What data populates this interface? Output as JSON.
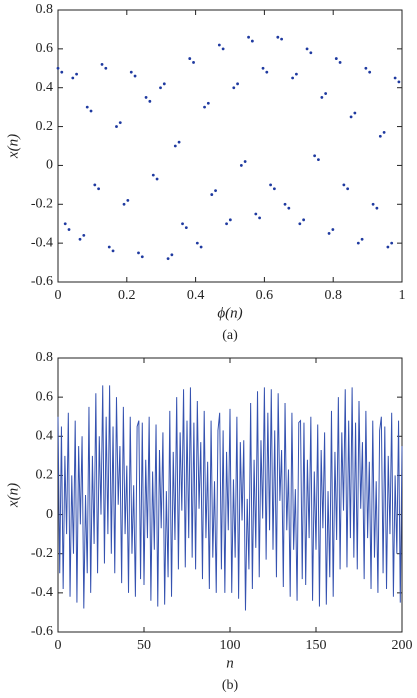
{
  "chart_data": [
    {
      "type": "scatter",
      "xlabel": "ϕ(n)",
      "ylabel": "x(n)",
      "caption": "(a)",
      "color": "#1f3aa0",
      "xlim": [
        0,
        1
      ],
      "xticks": [
        0,
        0.2,
        0.4,
        0.6,
        0.8,
        1
      ],
      "ylim": [
        -0.6,
        0.8
      ],
      "yticks": [
        -0.6,
        -0.4,
        -0.2,
        0,
        0.2,
        0.4,
        0.6,
        0.8
      ],
      "x": [
        0,
        0.021,
        0.043,
        0.064,
        0.085,
        0.107,
        0.128,
        0.149,
        0.17,
        0.192,
        0.213,
        0.234,
        0.256,
        0.277,
        0.298,
        0.32,
        0.341,
        0.362,
        0.383,
        0.405,
        0.426,
        0.447,
        0.469,
        0.49,
        0.511,
        0.533,
        0.554,
        0.575,
        0.596,
        0.618,
        0.639,
        0.66,
        0.682,
        0.703,
        0.724,
        0.746,
        0.767,
        0.788,
        0.809,
        0.831,
        0.852,
        0.873,
        0.895,
        0.916,
        0.937,
        0.959,
        0.98,
        0.011,
        0.032,
        0.054,
        0.075,
        0.096,
        0.118,
        0.139,
        0.16,
        0.181,
        0.203,
        0.224,
        0.245,
        0.267,
        0.288,
        0.309,
        0.331,
        0.352,
        0.373,
        0.394,
        0.416,
        0.437,
        0.458,
        0.48,
        0.501,
        0.522,
        0.544,
        0.565,
        0.586,
        0.607,
        0.629,
        0.65,
        0.671,
        0.693,
        0.714,
        0.735,
        0.757,
        0.778,
        0.799,
        0.82,
        0.842,
        0.863,
        0.884,
        0.906,
        0.927,
        0.948,
        0.97,
        0.991
      ],
      "values": [
        0.5,
        -0.3,
        0.45,
        -0.38,
        0.3,
        -0.1,
        0.52,
        -0.42,
        0.2,
        -0.2,
        0.48,
        -0.45,
        0.35,
        -0.05,
        0.4,
        -0.48,
        0.1,
        -0.3,
        0.55,
        -0.4,
        0.3,
        -0.15,
        0.62,
        -0.3,
        0.4,
        0.0,
        0.66,
        -0.25,
        0.5,
        -0.1,
        0.66,
        -0.2,
        0.45,
        -0.3,
        0.6,
        0.05,
        0.35,
        -0.35,
        0.55,
        -0.1,
        0.25,
        -0.4,
        0.5,
        -0.2,
        0.15,
        -0.42,
        0.45,
        0.48,
        -0.33,
        0.47,
        -0.36,
        0.28,
        -0.12,
        0.5,
        -0.44,
        0.22,
        -0.18,
        0.46,
        -0.47,
        0.33,
        -0.07,
        0.42,
        -0.46,
        0.12,
        -0.32,
        0.53,
        -0.42,
        0.32,
        -0.13,
        0.6,
        -0.28,
        0.42,
        0.02,
        0.64,
        -0.27,
        0.48,
        -0.12,
        0.65,
        -0.22,
        0.47,
        -0.28,
        0.58,
        0.03,
        0.37,
        -0.33,
        0.53,
        -0.12,
        0.27,
        -0.38,
        0.48,
        -0.22,
        0.17,
        -0.4,
        0.43
      ]
    },
    {
      "type": "line",
      "xlabel": "n",
      "ylabel": "x(n)",
      "caption": "(b)",
      "color": "#3552b0",
      "xlim": [
        0,
        200
      ],
      "xticks": [
        0,
        50,
        100,
        150,
        200
      ],
      "ylim": [
        -0.6,
        0.8
      ],
      "yticks": [
        -0.6,
        -0.4,
        -0.2,
        0,
        0.2,
        0.4,
        0.6,
        0.8
      ],
      "x": [
        0,
        1,
        2,
        3,
        4,
        5,
        6,
        7,
        8,
        9,
        10,
        11,
        12,
        13,
        14,
        15,
        16,
        17,
        18,
        19,
        20,
        21,
        22,
        23,
        24,
        25,
        26,
        27,
        28,
        29,
        30,
        31,
        32,
        33,
        34,
        35,
        36,
        37,
        38,
        39,
        40,
        41,
        42,
        43,
        44,
        45,
        46,
        47,
        48,
        49,
        50,
        51,
        52,
        53,
        54,
        55,
        56,
        57,
        58,
        59,
        60,
        61,
        62,
        63,
        64,
        65,
        66,
        67,
        68,
        69,
        70,
        71,
        72,
        73,
        74,
        75,
        76,
        77,
        78,
        79,
        80,
        81,
        82,
        83,
        84,
        85,
        86,
        87,
        88,
        89,
        90,
        91,
        92,
        93,
        94,
        95,
        96,
        97,
        98,
        99,
        100,
        101,
        102,
        103,
        104,
        105,
        106,
        107,
        108,
        109,
        110,
        111,
        112,
        113,
        114,
        115,
        116,
        117,
        118,
        119,
        120,
        121,
        122,
        123,
        124,
        125,
        126,
        127,
        128,
        129,
        130,
        131,
        132,
        133,
        134,
        135,
        136,
        137,
        138,
        139,
        140,
        141,
        142,
        143,
        144,
        145,
        146,
        147,
        148,
        149,
        150,
        151,
        152,
        153,
        154,
        155,
        156,
        157,
        158,
        159,
        160,
        161,
        162,
        163,
        164,
        165,
        166,
        167,
        168,
        169,
        170,
        171,
        172,
        173,
        174,
        175,
        176,
        177,
        178,
        179,
        180,
        181,
        182,
        183,
        184,
        185,
        186,
        187,
        188,
        189,
        190,
        191,
        192,
        193,
        194,
        195,
        196,
        197,
        198,
        199,
        200
      ],
      "values": [
        0.5,
        -0.3,
        0.45,
        -0.38,
        0.3,
        -0.1,
        0.52,
        -0.42,
        0.2,
        -0.2,
        0.48,
        -0.45,
        0.35,
        -0.05,
        0.4,
        -0.48,
        0.1,
        -0.3,
        0.55,
        -0.4,
        0.3,
        -0.15,
        0.62,
        -0.3,
        0.4,
        0.0,
        0.66,
        -0.25,
        0.5,
        -0.1,
        0.66,
        -0.2,
        0.45,
        -0.3,
        0.6,
        0.05,
        0.35,
        -0.35,
        0.55,
        -0.1,
        0.25,
        -0.4,
        0.5,
        -0.2,
        0.15,
        -0.42,
        0.45,
        0.48,
        -0.33,
        0.47,
        -0.36,
        0.28,
        -0.12,
        0.5,
        -0.44,
        0.22,
        -0.18,
        0.46,
        -0.47,
        0.33,
        -0.07,
        0.42,
        -0.46,
        0.12,
        -0.32,
        0.53,
        -0.42,
        0.32,
        -0.13,
        0.6,
        -0.28,
        0.42,
        0.02,
        0.64,
        -0.27,
        0.48,
        -0.12,
        0.65,
        -0.22,
        0.47,
        -0.28,
        0.58,
        0.03,
        0.37,
        -0.33,
        0.53,
        -0.12,
        0.27,
        -0.38,
        0.48,
        -0.22,
        0.17,
        -0.4,
        0.43,
        0.52,
        -0.28,
        0.43,
        -0.4,
        0.32,
        -0.08,
        0.54,
        -0.4,
        0.18,
        -0.22,
        0.5,
        -0.43,
        0.37,
        -0.03,
        0.38,
        -0.49,
        0.08,
        -0.28,
        0.57,
        -0.38,
        0.28,
        -0.17,
        0.63,
        -0.32,
        0.38,
        -0.02,
        0.65,
        -0.23,
        0.52,
        -0.08,
        0.64,
        -0.18,
        0.43,
        -0.32,
        0.62,
        0.07,
        0.33,
        -0.37,
        0.57,
        -0.08,
        0.23,
        -0.42,
        0.52,
        -0.18,
        0.13,
        -0.44,
        0.47,
        0.48,
        -0.33,
        0.47,
        -0.36,
        0.28,
        -0.12,
        0.5,
        -0.44,
        0.22,
        -0.18,
        0.46,
        -0.47,
        0.33,
        -0.07,
        0.42,
        -0.46,
        0.12,
        -0.32,
        0.53,
        -0.42,
        0.32,
        -0.13,
        0.6,
        -0.28,
        0.42,
        0.02,
        0.64,
        -0.27,
        0.48,
        -0.12,
        0.65,
        -0.22,
        0.47,
        -0.28,
        0.58,
        0.03,
        0.37,
        -0.33,
        0.53,
        -0.12,
        0.27,
        -0.38,
        0.48,
        -0.22,
        0.17,
        -0.4,
        0.43,
        0.5,
        -0.3,
        0.45,
        -0.38,
        0.3,
        -0.1,
        0.52,
        -0.42,
        0.2,
        -0.2,
        0.48,
        -0.45,
        0.35
      ]
    }
  ]
}
